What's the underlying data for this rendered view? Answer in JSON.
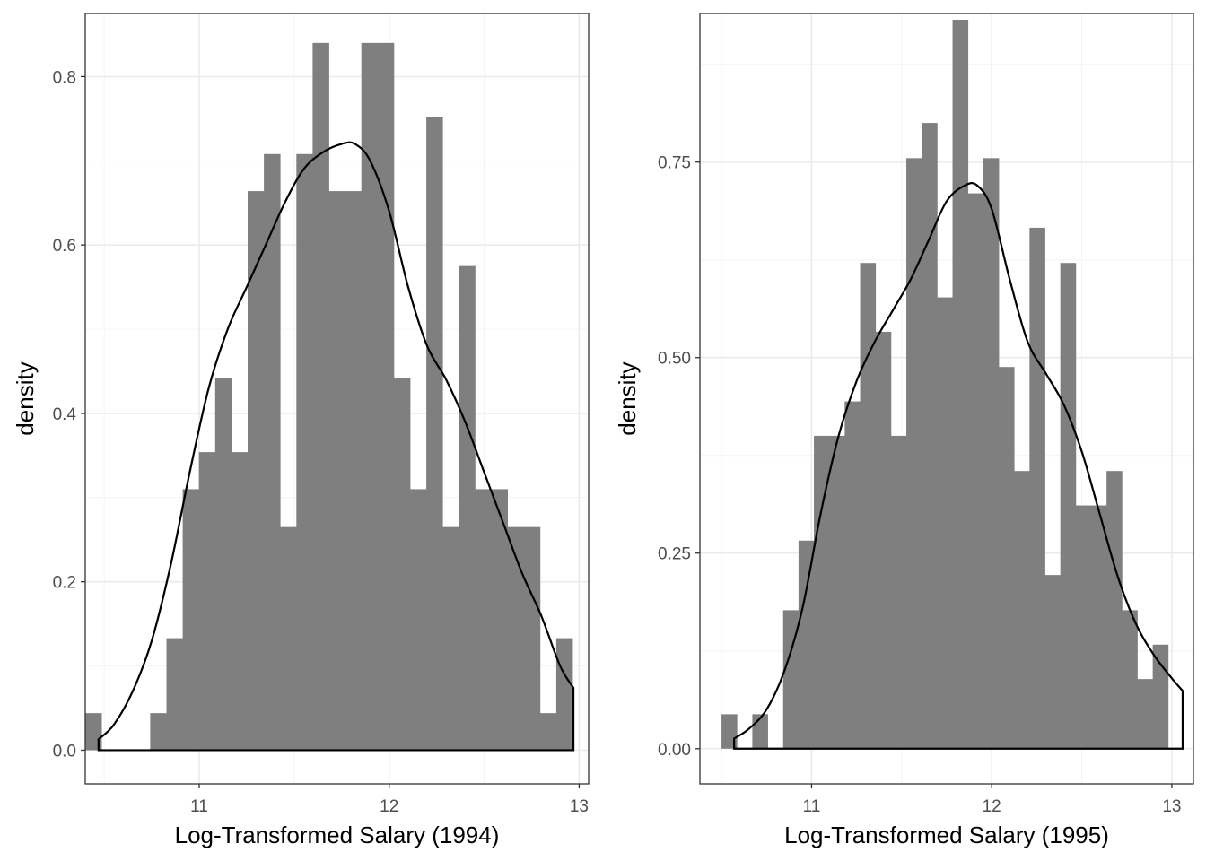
{
  "colors": {
    "bar_fill": "#7f7f7f",
    "density_line": "#000000",
    "grid_major": "#ebebeb",
    "grid_minor": "#f4f4f4",
    "panel_border": "#333333",
    "tick_label": "#4d4d4d"
  },
  "chart_data": [
    {
      "type": "histogram",
      "xlabel": "Log-Transformed Salary (1994)",
      "ylabel": "density",
      "xlim": [
        10.4,
        13.05
      ],
      "ylim": [
        -0.04,
        0.875
      ],
      "xticks": [
        11,
        12,
        13
      ],
      "xtick_labels": [
        "11",
        "12",
        "13"
      ],
      "yticks": [
        0.0,
        0.2,
        0.4,
        0.6,
        0.8
      ],
      "ytick_labels": [
        "0.0",
        "0.2",
        "0.4",
        "0.6",
        "0.8"
      ],
      "grid": true,
      "bins": {
        "start": 10.4,
        "width": 0.0855,
        "values": [
          0.044,
          0.0,
          0.0,
          0.0,
          0.044,
          0.133,
          0.31,
          0.354,
          0.442,
          0.354,
          0.664,
          0.708,
          0.265,
          0.708,
          0.84,
          0.664,
          0.664,
          0.84,
          0.84,
          0.442,
          0.31,
          0.752,
          0.265,
          0.575,
          0.31,
          0.31,
          0.265,
          0.265,
          0.044,
          0.133
        ]
      },
      "density": {
        "x": [
          10.47,
          10.55,
          10.65,
          10.75,
          10.85,
          10.95,
          11.05,
          11.15,
          11.25,
          11.35,
          11.45,
          11.55,
          11.65,
          11.75,
          11.82,
          11.9,
          12.0,
          12.1,
          12.2,
          12.3,
          12.4,
          12.5,
          12.6,
          12.7,
          12.8,
          12.9,
          12.97
        ],
        "y": [
          0.013,
          0.03,
          0.07,
          0.13,
          0.22,
          0.33,
          0.43,
          0.5,
          0.55,
          0.6,
          0.65,
          0.69,
          0.71,
          0.72,
          0.72,
          0.7,
          0.64,
          0.55,
          0.48,
          0.44,
          0.39,
          0.33,
          0.27,
          0.21,
          0.16,
          0.1,
          0.074
        ]
      }
    },
    {
      "type": "histogram",
      "xlabel": "Log-Transformed Salary (1995)",
      "ylabel": "density",
      "xlim": [
        10.38,
        13.12
      ],
      "ylim": [
        -0.045,
        0.94
      ],
      "xticks": [
        11,
        12,
        13
      ],
      "xtick_labels": [
        "11",
        "12",
        "13"
      ],
      "yticks": [
        0.0,
        0.25,
        0.5,
        0.75
      ],
      "ytick_labels": [
        "0.00",
        "0.25",
        "0.50",
        "0.75"
      ],
      "grid": true,
      "bins": {
        "start": 10.5,
        "width": 0.0855,
        "values": [
          0.044,
          0.0,
          0.044,
          0.0,
          0.177,
          0.266,
          0.4,
          0.4,
          0.444,
          0.621,
          0.533,
          0.4,
          0.755,
          0.8,
          0.577,
          0.932,
          0.71,
          0.755,
          0.488,
          0.355,
          0.666,
          0.222,
          0.621,
          0.311,
          0.311,
          0.355,
          0.177,
          0.089,
          0.133
        ]
      },
      "density": {
        "x": [
          10.57,
          10.65,
          10.75,
          10.85,
          10.95,
          11.05,
          11.15,
          11.25,
          11.35,
          11.45,
          11.55,
          11.65,
          11.75,
          11.85,
          11.92,
          12.0,
          12.1,
          12.2,
          12.3,
          12.4,
          12.5,
          12.6,
          12.7,
          12.8,
          12.9,
          13.0,
          13.06
        ],
        "y": [
          0.013,
          0.025,
          0.05,
          0.1,
          0.18,
          0.3,
          0.4,
          0.47,
          0.52,
          0.56,
          0.6,
          0.65,
          0.7,
          0.72,
          0.72,
          0.69,
          0.6,
          0.52,
          0.48,
          0.44,
          0.38,
          0.3,
          0.22,
          0.16,
          0.12,
          0.09,
          0.074
        ]
      }
    }
  ]
}
